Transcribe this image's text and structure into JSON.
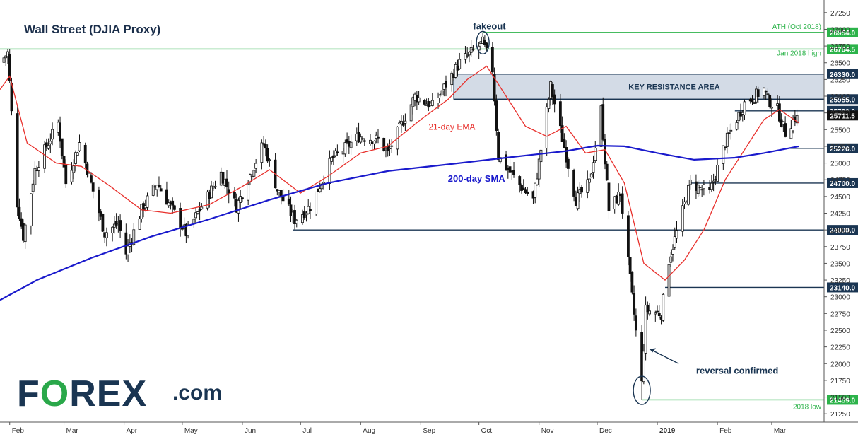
{
  "title": "Wall Street (DJIA Proxy)",
  "logo": {
    "brand_f": "F",
    "brand_o": "O",
    "brand_rest": "REX",
    "brand_com": ".com"
  },
  "colors": {
    "up": "#111111",
    "down": "#111111",
    "ema": "#e8302c",
    "sma": "#1a1acc",
    "green_level": "#2cb34a",
    "navy_level": "#1a3552",
    "resistance_fill": "#d3dbe6",
    "annotation": "#1a3552"
  },
  "chart_data": {
    "type": "candlestick",
    "title": "Wall Street (DJIA Proxy)",
    "ylim": [
      21125,
      27375
    ],
    "y_ticks": [
      21250,
      21500,
      21750,
      22000,
      22250,
      22500,
      22750,
      23000,
      23250,
      23500,
      23750,
      24000,
      24250,
      24500,
      24750,
      25000,
      25250,
      25500,
      25750,
      26000,
      26250,
      26500,
      26750,
      27000,
      27250
    ],
    "x_range": [
      "2018-01-27",
      "2019-03-28"
    ],
    "x_ticks": [
      {
        "label": "Feb",
        "date": "2018-02-01",
        "bold": false
      },
      {
        "label": "Mar",
        "date": "2018-03-01",
        "bold": false
      },
      {
        "label": "Apr",
        "date": "2018-04-01",
        "bold": false
      },
      {
        "label": "May",
        "date": "2018-05-01",
        "bold": false
      },
      {
        "label": "Jun",
        "date": "2018-06-01",
        "bold": false
      },
      {
        "label": "Jul",
        "date": "2018-07-01",
        "bold": false
      },
      {
        "label": "Aug",
        "date": "2018-08-01",
        "bold": false
      },
      {
        "label": "Sep",
        "date": "2018-09-01",
        "bold": false
      },
      {
        "label": "Oct",
        "date": "2018-10-01",
        "bold": false
      },
      {
        "label": "Nov",
        "date": "2018-11-01",
        "bold": false
      },
      {
        "label": "Dec",
        "date": "2018-12-01",
        "bold": false
      },
      {
        "label": "2019",
        "date": "2019-01-01",
        "bold": true
      },
      {
        "label": "Feb",
        "date": "2019-02-01",
        "bold": false
      },
      {
        "label": "Mar",
        "date": "2019-03-01",
        "bold": false
      }
    ],
    "close_anchors": [
      [
        "2018-01-27",
        26500
      ],
      [
        "2018-01-31",
        26650
      ],
      [
        "2018-02-05",
        24400
      ],
      [
        "2018-02-08",
        23900
      ],
      [
        "2018-02-14",
        24900
      ],
      [
        "2018-02-26",
        25600
      ],
      [
        "2018-03-02",
        24700
      ],
      [
        "2018-03-09",
        25300
      ],
      [
        "2018-03-13",
        24900
      ],
      [
        "2018-03-22",
        23950
      ],
      [
        "2018-03-29",
        24100
      ],
      [
        "2018-04-02",
        23650
      ],
      [
        "2018-04-10",
        24300
      ],
      [
        "2018-04-18",
        24700
      ],
      [
        "2018-05-03",
        23950
      ],
      [
        "2018-05-21",
        24850
      ],
      [
        "2018-05-29",
        24350
      ],
      [
        "2018-06-12",
        25300
      ],
      [
        "2018-06-19",
        24600
      ],
      [
        "2018-06-28",
        24150
      ],
      [
        "2018-07-06",
        24350
      ],
      [
        "2018-07-17",
        25050
      ],
      [
        "2018-07-31",
        25400
      ],
      [
        "2018-08-10",
        25350
      ],
      [
        "2018-08-15",
        25150
      ],
      [
        "2018-08-29",
        26000
      ],
      [
        "2018-09-07",
        25850
      ],
      [
        "2018-09-21",
        26500
      ],
      [
        "2018-10-03",
        26800
      ],
      [
        "2018-10-08",
        26400
      ],
      [
        "2018-10-11",
        25100
      ],
      [
        "2018-10-24",
        24600
      ],
      [
        "2018-10-29",
        24450
      ],
      [
        "2018-11-07",
        26150
      ],
      [
        "2018-11-20",
        24450
      ],
      [
        "2018-11-27",
        24700
      ],
      [
        "2018-12-03",
        25800
      ],
      [
        "2018-12-07",
        24300
      ],
      [
        "2018-12-13",
        24550
      ],
      [
        "2018-12-24",
        21700
      ],
      [
        "2018-12-26",
        22800
      ],
      [
        "2019-01-03",
        22750
      ],
      [
        "2019-01-07",
        23550
      ],
      [
        "2019-01-18",
        24700
      ],
      [
        "2019-01-28",
        24550
      ],
      [
        "2019-02-05",
        25300
      ],
      [
        "2019-02-15",
        25900
      ],
      [
        "2019-02-25",
        26100
      ],
      [
        "2019-02-27",
        25950
      ],
      [
        "2019-03-04",
        25800
      ],
      [
        "2019-03-08",
        25450
      ],
      [
        "2019-03-11",
        25600
      ],
      [
        "2019-03-14",
        25711.5
      ]
    ],
    "ema21_points": [
      [
        "2018-01-27",
        26100
      ],
      [
        "2018-02-01",
        26300
      ],
      [
        "2018-02-10",
        25300
      ],
      [
        "2018-02-25",
        25000
      ],
      [
        "2018-03-10",
        24950
      ],
      [
        "2018-03-25",
        24650
      ],
      [
        "2018-04-10",
        24300
      ],
      [
        "2018-04-25",
        24250
      ],
      [
        "2018-05-15",
        24380
      ],
      [
        "2018-06-01",
        24650
      ],
      [
        "2018-06-15",
        24900
      ],
      [
        "2018-07-01",
        24550
      ],
      [
        "2018-07-15",
        24800
      ],
      [
        "2018-08-01",
        25150
      ],
      [
        "2018-08-15",
        25250
      ],
      [
        "2018-09-01",
        25650
      ],
      [
        "2018-09-15",
        25950
      ],
      [
        "2018-09-25",
        26250
      ],
      [
        "2018-10-05",
        26450
      ],
      [
        "2018-10-15",
        26000
      ],
      [
        "2018-10-25",
        25550
      ],
      [
        "2018-11-05",
        25400
      ],
      [
        "2018-11-15",
        25550
      ],
      [
        "2018-11-25",
        25150
      ],
      [
        "2018-12-05",
        25200
      ],
      [
        "2018-12-15",
        24700
      ],
      [
        "2018-12-25",
        23500
      ],
      [
        "2019-01-05",
        23250
      ],
      [
        "2019-01-15",
        23550
      ],
      [
        "2019-01-25",
        24000
      ],
      [
        "2019-02-05",
        24750
      ],
      [
        "2019-02-15",
        25200
      ],
      [
        "2019-02-25",
        25650
      ],
      [
        "2019-03-05",
        25800
      ],
      [
        "2019-03-15",
        25600
      ]
    ],
    "sma200_points": [
      [
        "2018-01-27",
        22950
      ],
      [
        "2018-02-15",
        23250
      ],
      [
        "2018-03-15",
        23580
      ],
      [
        "2018-04-15",
        23900
      ],
      [
        "2018-05-15",
        24160
      ],
      [
        "2018-06-15",
        24450
      ],
      [
        "2018-07-15",
        24700
      ],
      [
        "2018-08-15",
        24880
      ],
      [
        "2018-09-15",
        24980
      ],
      [
        "2018-10-15",
        25080
      ],
      [
        "2018-11-15",
        25180
      ],
      [
        "2018-12-01",
        25260
      ],
      [
        "2018-12-15",
        25250
      ],
      [
        "2019-01-01",
        25150
      ],
      [
        "2019-01-20",
        25050
      ],
      [
        "2019-02-10",
        25080
      ],
      [
        "2019-02-25",
        25150
      ],
      [
        "2019-03-15",
        25250
      ]
    ],
    "levels": [
      {
        "value": 26954.0,
        "label": "26954.0",
        "kind": "green",
        "from": "2018-10-03",
        "note": "ATH (Oct 2018)"
      },
      {
        "value": 26704.5,
        "label": "26704.5",
        "kind": "green",
        "from": "2018-01-27",
        "note": "Jan 2018 high"
      },
      {
        "value": 26330.0,
        "label": "26330.0",
        "kind": "navy",
        "from": "2018-10-09",
        "note": ""
      },
      {
        "value": 25955.0,
        "label": "25955.0",
        "kind": "navy",
        "from": "2018-09-18",
        "note": ""
      },
      {
        "value": 25780.0,
        "label": "25780.0",
        "kind": "navy",
        "from": "2019-02-10",
        "note": ""
      },
      {
        "value": 25220.0,
        "label": "25220.0",
        "kind": "navy",
        "from": "2019-03-08",
        "note": ""
      },
      {
        "value": 24700.0,
        "label": "24700.0",
        "kind": "navy",
        "from": "2019-01-18",
        "note": ""
      },
      {
        "value": 24000.0,
        "label": "24000.0",
        "kind": "navy",
        "from": "2018-06-27",
        "note": ""
      },
      {
        "value": 23140.0,
        "label": "23140.0",
        "kind": "navy",
        "from": "2019-01-05",
        "note": ""
      },
      {
        "value": 21459.0,
        "label": "21459.0",
        "kind": "green",
        "from": "2018-12-24",
        "note": "2018 low"
      }
    ],
    "last_price": {
      "value": 25711.5,
      "label": "25711.5"
    },
    "resistance_zone": {
      "from": "2018-09-18",
      "low": 25955,
      "high": 26330,
      "label": "KEY RESISTANCE AREA"
    },
    "annotations": [
      {
        "text": "fakeout",
        "date": "2018-09-28",
        "value": 27000
      },
      {
        "text": "21-day EMA",
        "date": "2018-09-05",
        "value": 25500
      },
      {
        "text": "200-day SMA",
        "date": "2018-09-15",
        "value": 24720
      },
      {
        "text": "reversal confirmed",
        "date": "2019-01-21",
        "value": 21850
      }
    ]
  }
}
